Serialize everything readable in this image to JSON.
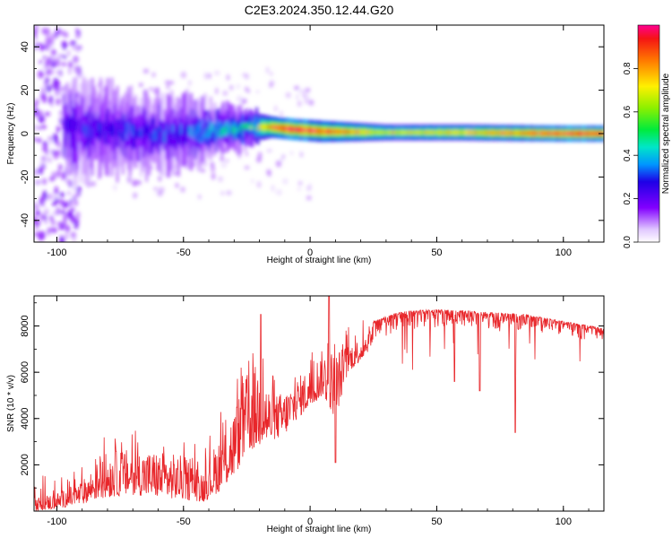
{
  "figure": {
    "title": "C2E3.2024.350.12.44.G20"
  },
  "chart_data": [
    {
      "type": "heatmap",
      "panel": "top",
      "xlabel": "Height of straight line (km)",
      "ylabel": "Frequency (Hz)",
      "xlim": [
        -109,
        116
      ],
      "ylim": [
        -50,
        50
      ],
      "xticks": [
        -100,
        -50,
        0,
        50,
        100
      ],
      "yticks": [
        -40,
        -20,
        0,
        20,
        40
      ],
      "colorbar": {
        "label": "Normalized spectral amplitude",
        "range": [
          0,
          1
        ],
        "ticks": [
          "0.0",
          "0.2",
          "0.4",
          "0.6",
          "0.8"
        ]
      },
      "ridge": [
        {
          "x": -95,
          "freq": 2,
          "spread": 8,
          "amp": 0.25
        },
        {
          "x": -80,
          "freq": 1,
          "spread": 7,
          "amp": 0.28
        },
        {
          "x": -60,
          "freq": 0,
          "spread": 6,
          "amp": 0.3
        },
        {
          "x": -40,
          "freq": 1,
          "spread": 5,
          "amp": 0.35
        },
        {
          "x": -25,
          "freq": 3,
          "spread": 3,
          "amp": 0.5
        },
        {
          "x": -15,
          "freq": 3,
          "spread": 2,
          "amp": 0.85
        },
        {
          "x": -7,
          "freq": 2,
          "spread": 2,
          "amp": 1.0
        },
        {
          "x": 5,
          "freq": 1,
          "spread": 2,
          "amp": 0.9
        },
        {
          "x": 30,
          "freq": 0.5,
          "spread": 1.5,
          "amp": 0.7
        },
        {
          "x": 60,
          "freq": 0.5,
          "spread": 1.5,
          "amp": 0.75
        },
        {
          "x": 100,
          "freq": 0,
          "spread": 1.5,
          "amp": 0.95
        },
        {
          "x": 116,
          "freq": 0,
          "spread": 1.5,
          "amp": 0.95
        }
      ]
    },
    {
      "type": "line",
      "panel": "bottom",
      "xlabel": "Height of straight line (km)",
      "ylabel": "SNR (10 * v/v)",
      "xlim": [
        -109,
        116
      ],
      "ylim": [
        0,
        9300
      ],
      "xticks": [
        -100,
        -50,
        0,
        50,
        100
      ],
      "yticks": [
        2000,
        4000,
        6000,
        8000
      ],
      "color": "#e8262a",
      "envelope": [
        {
          "x": -109,
          "low": 0,
          "high": 600
        },
        {
          "x": -100,
          "low": 100,
          "high": 800
        },
        {
          "x": -90,
          "low": 300,
          "high": 1300
        },
        {
          "x": -85,
          "low": 500,
          "high": 2000
        },
        {
          "x": -80,
          "low": 600,
          "high": 2600
        },
        {
          "x": -70,
          "low": 700,
          "high": 2700
        },
        {
          "x": -60,
          "low": 600,
          "high": 2600
        },
        {
          "x": -50,
          "low": 500,
          "high": 2400
        },
        {
          "x": -42,
          "low": 400,
          "high": 1800
        },
        {
          "x": -35,
          "low": 900,
          "high": 3500
        },
        {
          "x": -30,
          "low": 1500,
          "high": 4500
        },
        {
          "x": -25,
          "low": 2500,
          "high": 6000
        },
        {
          "x": -20,
          "low": 2800,
          "high": 6500
        },
        {
          "x": -15,
          "low": 3000,
          "high": 5000
        },
        {
          "x": -10,
          "low": 3300,
          "high": 5200
        },
        {
          "x": -5,
          "low": 4000,
          "high": 5800
        },
        {
          "x": 0,
          "low": 4500,
          "high": 6200
        },
        {
          "x": 5,
          "low": 5000,
          "high": 7000
        },
        {
          "x": 10,
          "low": 4000,
          "high": 7000
        },
        {
          "x": 15,
          "low": 6000,
          "high": 7200
        },
        {
          "x": 20,
          "low": 6500,
          "high": 7500
        },
        {
          "x": 25,
          "low": 7200,
          "high": 8200
        },
        {
          "x": 35,
          "low": 7800,
          "high": 8600
        },
        {
          "x": 45,
          "low": 7900,
          "high": 8700
        },
        {
          "x": 55,
          "low": 7900,
          "high": 8700
        },
        {
          "x": 70,
          "low": 7900,
          "high": 8600
        },
        {
          "x": 85,
          "low": 7800,
          "high": 8500
        },
        {
          "x": 100,
          "low": 7600,
          "high": 8200
        },
        {
          "x": 116,
          "low": 7200,
          "high": 7900
        }
      ],
      "features": [
        {
          "x": -19.5,
          "value": 8500
        },
        {
          "x": 7.5,
          "value": 9300
        },
        {
          "x": 10,
          "value": 2100
        },
        {
          "x": 81,
          "value": 3400
        },
        {
          "x": 67,
          "value": 5200
        },
        {
          "x": 57,
          "value": 5600
        }
      ]
    }
  ]
}
